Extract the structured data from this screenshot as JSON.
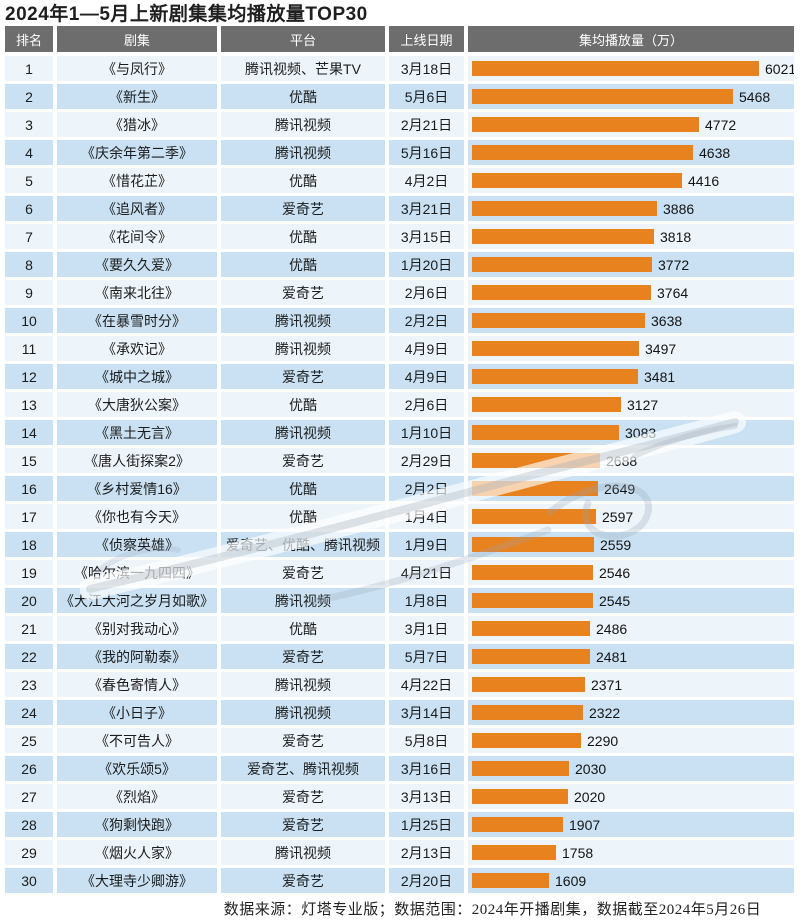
{
  "page_title": "2024年1—5月上新剧集集均播放量TOP30",
  "footer": {
    "text": "数据来源：灯塔专业版；数据范围：2024年开播剧集，数据截至2024年5月26日"
  },
  "colors": {
    "bar": "#e8821f",
    "header_bg": "#6d6d6d",
    "header_text": "#ffffff",
    "row_light": "#edf4fa",
    "row_blue": "#c9e1f2"
  },
  "table": {
    "headers": [
      "排名",
      "剧集",
      "平台",
      "上线日期",
      "集均播放量（万）"
    ],
    "rows": [
      {
        "rank": 1,
        "title": "《与凤行》",
        "platform": "腾讯视频、芒果TV",
        "date": "3月18日",
        "value": 6021
      },
      {
        "rank": 2,
        "title": "《新生》",
        "platform": "优酷",
        "date": "5月6日",
        "value": 5468
      },
      {
        "rank": 3,
        "title": "《猎冰》",
        "platform": "腾讯视频",
        "date": "2月21日",
        "value": 4772
      },
      {
        "rank": 4,
        "title": "《庆余年第二季》",
        "platform": "腾讯视频",
        "date": "5月16日",
        "value": 4638
      },
      {
        "rank": 5,
        "title": "《惜花芷》",
        "platform": "优酷",
        "date": "4月2日",
        "value": 4416
      },
      {
        "rank": 6,
        "title": "《追风者》",
        "platform": "爱奇艺",
        "date": "3月21日",
        "value": 3886
      },
      {
        "rank": 7,
        "title": "《花间令》",
        "platform": "优酷",
        "date": "3月15日",
        "value": 3818
      },
      {
        "rank": 8,
        "title": "《要久久爱》",
        "platform": "优酷",
        "date": "1月20日",
        "value": 3772
      },
      {
        "rank": 9,
        "title": "《南来北往》",
        "platform": "爱奇艺",
        "date": "2月6日",
        "value": 3764
      },
      {
        "rank": 10,
        "title": "《在暴雪时分》",
        "platform": "腾讯视频",
        "date": "2月2日",
        "value": 3638
      },
      {
        "rank": 11,
        "title": "《承欢记》",
        "platform": "腾讯视频",
        "date": "4月9日",
        "value": 3497
      },
      {
        "rank": 12,
        "title": "《城中之城》",
        "platform": "爱奇艺",
        "date": "4月9日",
        "value": 3481
      },
      {
        "rank": 13,
        "title": "《大唐狄公案》",
        "platform": "优酷",
        "date": "2月6日",
        "value": 3127
      },
      {
        "rank": 14,
        "title": "《黑土无言》",
        "platform": "腾讯视频",
        "date": "1月10日",
        "value": 3083
      },
      {
        "rank": 15,
        "title": "《唐人街探案2》",
        "platform": "爱奇艺",
        "date": "2月29日",
        "value": 2688
      },
      {
        "rank": 16,
        "title": "《乡村爱情16》",
        "platform": "优酷",
        "date": "2月2日",
        "value": 2649
      },
      {
        "rank": 17,
        "title": "《你也有今天》",
        "platform": "优酷",
        "date": "1月4日",
        "value": 2597
      },
      {
        "rank": 18,
        "title": "《侦察英雄》",
        "platform": "爱奇艺、优酷、腾讯视频",
        "date": "1月9日",
        "value": 2559
      },
      {
        "rank": 19,
        "title": "《哈尔滨一九四四》",
        "platform": "爱奇艺",
        "date": "4月21日",
        "value": 2546
      },
      {
        "rank": 20,
        "title": "《大江大河之岁月如歌》",
        "platform": "腾讯视频",
        "date": "1月8日",
        "value": 2545
      },
      {
        "rank": 21,
        "title": "《别对我动心》",
        "platform": "优酷",
        "date": "3月1日",
        "value": 2486
      },
      {
        "rank": 22,
        "title": "《我的阿勒泰》",
        "platform": "爱奇艺",
        "date": "5月7日",
        "value": 2481
      },
      {
        "rank": 23,
        "title": "《春色寄情人》",
        "platform": "腾讯视频",
        "date": "4月22日",
        "value": 2371
      },
      {
        "rank": 24,
        "title": "《小日子》",
        "platform": "腾讯视频",
        "date": "3月14日",
        "value": 2322
      },
      {
        "rank": 25,
        "title": "《不可告人》",
        "platform": "爱奇艺",
        "date": "5月8日",
        "value": 2290
      },
      {
        "rank": 26,
        "title": "《欢乐颂5》",
        "platform": "爱奇艺、腾讯视频",
        "date": "3月16日",
        "value": 2030
      },
      {
        "rank": 27,
        "title": "《烈焰》",
        "platform": "爱奇艺",
        "date": "3月13日",
        "value": 2020
      },
      {
        "rank": 28,
        "title": "《狗剩快跑》",
        "platform": "爱奇艺",
        "date": "1月25日",
        "value": 1907
      },
      {
        "rank": 29,
        "title": "《烟火人家》",
        "platform": "腾讯视频",
        "date": "2月13日",
        "value": 1758
      },
      {
        "rank": 30,
        "title": "《大理寺少卿游》",
        "platform": "爱奇艺",
        "date": "2月20日",
        "value": 1609
      }
    ]
  },
  "chart_data": {
    "type": "bar",
    "orientation": "horizontal",
    "title": "2024年1—5月上新剧集集均播放量TOP30",
    "xlabel": "集均播放量（万）",
    "ylabel": "剧集",
    "xlim": [
      0,
      6021
    ],
    "grid": false,
    "legend": "none",
    "bar_color": "#e8821f",
    "categories": [
      "《与凤行》",
      "《新生》",
      "《猎冰》",
      "《庆余年第二季》",
      "《惜花芷》",
      "《追风者》",
      "《花间令》",
      "《要久久爱》",
      "《南来北往》",
      "《在暴雪时分》",
      "《承欢记》",
      "《城中之城》",
      "《大唐狄公案》",
      "《黑土无言》",
      "《唐人街探案2》",
      "《乡村爱情16》",
      "《你也有今天》",
      "《侦察英雄》",
      "《哈尔滨一九四四》",
      "《大江大河之岁月如歌》",
      "《别对我动心》",
      "《我的阿勒泰》",
      "《春色寄情人》",
      "《小日子》",
      "《不可告人》",
      "《欢乐颂5》",
      "《烈焰》",
      "《狗剩快跑》",
      "《烟火人家》",
      "《大理寺少卿游》"
    ],
    "values": [
      6021,
      5468,
      4772,
      4638,
      4416,
      3886,
      3818,
      3772,
      3764,
      3638,
      3497,
      3481,
      3127,
      3083,
      2688,
      2649,
      2597,
      2559,
      2546,
      2545,
      2486,
      2481,
      2371,
      2322,
      2290,
      2030,
      2020,
      1907,
      1758,
      1609
    ],
    "source_note": "数据来源：灯塔专业版；数据范围：2024年开播剧集，数据截至2024年5月26日"
  }
}
